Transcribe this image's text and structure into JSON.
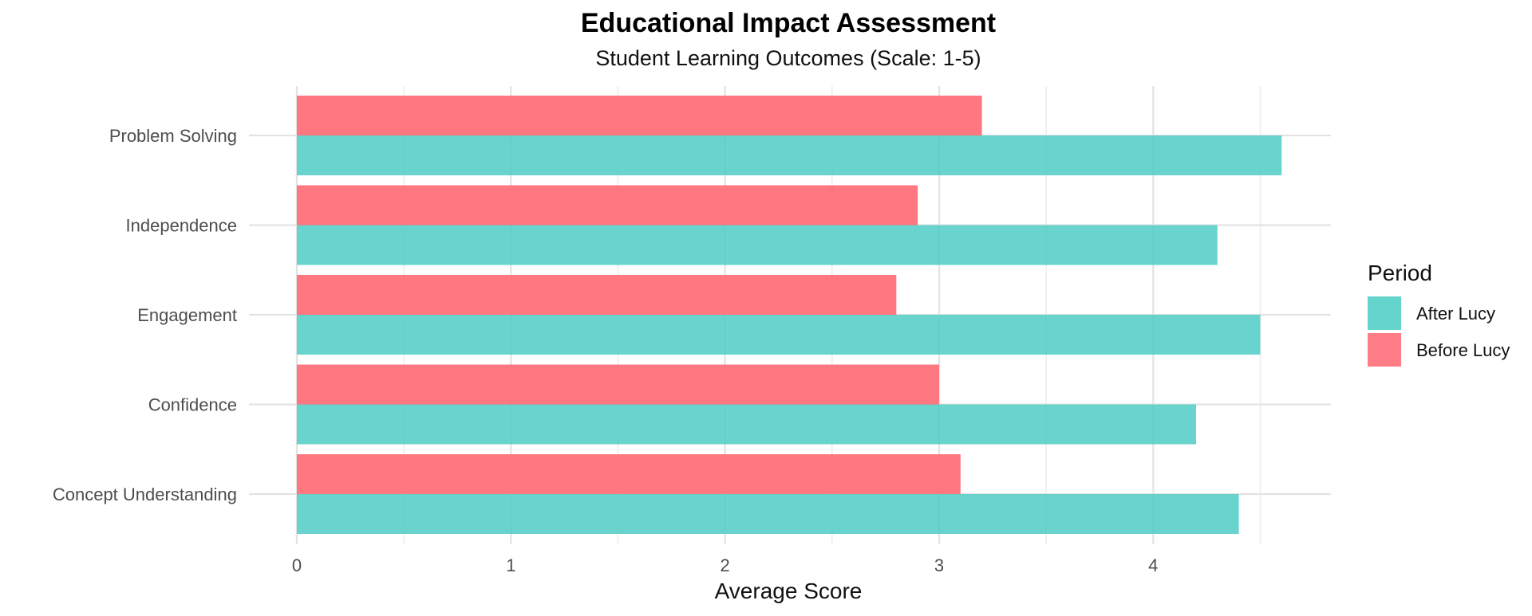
{
  "chart_data": {
    "type": "bar",
    "orientation": "horizontal",
    "title": "Educational Impact Assessment",
    "subtitle": "Student Learning Outcomes (Scale: 1-5)",
    "xlabel": "Average Score",
    "ylabel": "",
    "xlim": [
      0,
      4.83
    ],
    "x_ticks": [
      0,
      1,
      2,
      3,
      4
    ],
    "x_tick_labels": [
      "0",
      "1",
      "2",
      "3",
      "4"
    ],
    "grid": true,
    "categories": [
      "Problem Solving",
      "Independence",
      "Engagement",
      "Confidence",
      "Concept Understanding"
    ],
    "series": [
      {
        "name": "Before Lucy",
        "color": "#ff6b75",
        "values": [
          3.2,
          2.9,
          2.8,
          3.0,
          3.1
        ]
      },
      {
        "name": "After Lucy",
        "color": "#4ecdc4",
        "values": [
          4.6,
          4.3,
          4.5,
          4.2,
          4.4
        ]
      }
    ],
    "legend": {
      "title": "Period",
      "position": "right",
      "entries": [
        {
          "label": "After Lucy",
          "color": "#4ecdc4"
        },
        {
          "label": "Before Lucy",
          "color": "#ff6b75"
        }
      ]
    }
  }
}
